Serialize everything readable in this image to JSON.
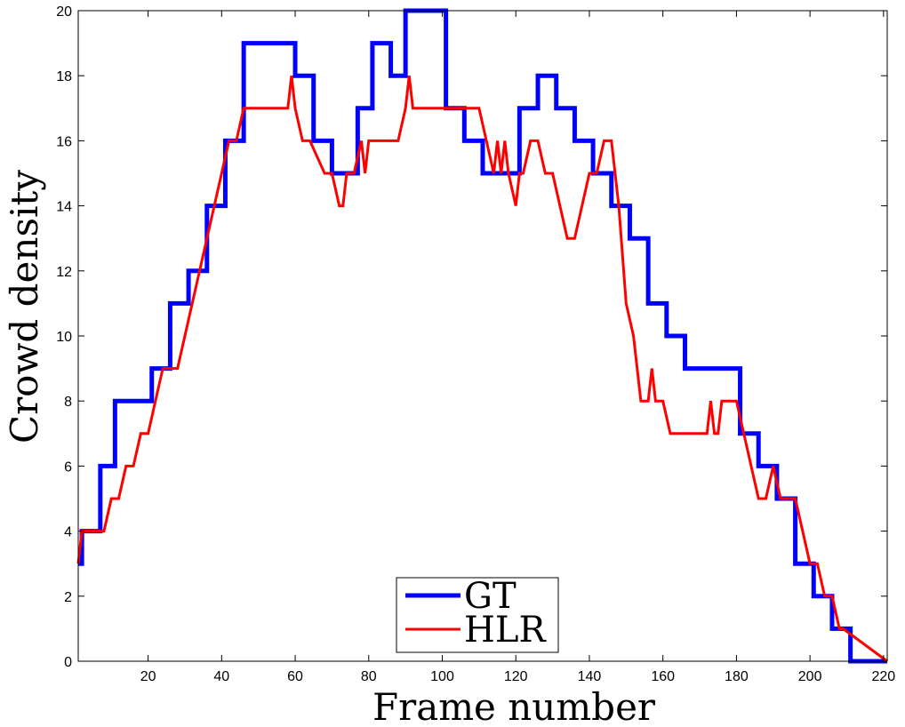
{
  "chart_data": {
    "type": "line",
    "title": "",
    "xlabel": "Frame number",
    "ylabel": "Crowd density",
    "xlim": [
      1,
      221
    ],
    "ylim": [
      0,
      20
    ],
    "xticks": [
      20,
      40,
      60,
      80,
      100,
      120,
      140,
      160,
      180,
      200,
      220
    ],
    "yticks": [
      0,
      2,
      4,
      6,
      8,
      10,
      12,
      14,
      16,
      18,
      20
    ],
    "grid": false,
    "legend": "bottom-center",
    "series": [
      {
        "name": "GT",
        "color": "#0000ff",
        "style": "step",
        "x": [
          1,
          2,
          5,
          7,
          10,
          11,
          20,
          21,
          25,
          26,
          30,
          31,
          35,
          36,
          40,
          41,
          45,
          46,
          59,
          60,
          64,
          65,
          69,
          70,
          76,
          77,
          80,
          81,
          85,
          86,
          89,
          90,
          100,
          101,
          105,
          106,
          110,
          111,
          120,
          121,
          125,
          126,
          130,
          131,
          135,
          136,
          140,
          141,
          145,
          146,
          150,
          151,
          155,
          156,
          160,
          161,
          165,
          166,
          180,
          181,
          185,
          186,
          190,
          191,
          195,
          196,
          200,
          201,
          205,
          206,
          210,
          211,
          221
        ],
        "y": [
          3,
          4,
          4,
          6,
          6,
          8,
          8,
          9,
          9,
          11,
          11,
          12,
          12,
          14,
          14,
          16,
          16,
          19,
          19,
          18,
          18,
          16,
          16,
          15,
          15,
          17,
          17,
          19,
          19,
          18,
          18,
          20,
          20,
          17,
          17,
          16,
          16,
          15,
          15,
          17,
          17,
          18,
          18,
          17,
          17,
          16,
          16,
          15,
          15,
          14,
          14,
          13,
          13,
          11,
          11,
          10,
          10,
          9,
          9,
          7,
          7,
          6,
          6,
          5,
          5,
          3,
          3,
          2,
          2,
          1,
          1,
          0,
          0
        ]
      },
      {
        "name": "HLR",
        "color": "#ff0000",
        "style": "line",
        "x": [
          1,
          2,
          8,
          10,
          12,
          14,
          16,
          18,
          20,
          22,
          24,
          28,
          30,
          32,
          34,
          36,
          38,
          40,
          42,
          44,
          46,
          58,
          59,
          60,
          62,
          64,
          68,
          70,
          72,
          73,
          74,
          76,
          78,
          79,
          80,
          81,
          82,
          88,
          90,
          91,
          92,
          94,
          110,
          112,
          114,
          115,
          116,
          117,
          118,
          120,
          121,
          122,
          124,
          126,
          128,
          130,
          132,
          134,
          136,
          138,
          140,
          142,
          144,
          146,
          148,
          150,
          152,
          154,
          156,
          157,
          158,
          160,
          162,
          172,
          173,
          174,
          175,
          176,
          180,
          182,
          184,
          186,
          188,
          190,
          192,
          194,
          196,
          200,
          202,
          204,
          206,
          208,
          209,
          221
        ],
        "y": [
          3,
          4,
          4,
          5,
          5,
          6,
          6,
          7,
          7,
          8,
          9,
          9,
          10,
          11,
          12,
          13,
          14,
          15,
          16,
          16,
          17,
          17,
          18,
          17,
          16,
          16,
          15,
          15,
          14,
          14,
          15,
          15,
          16,
          15,
          16,
          16,
          16,
          16,
          17,
          18,
          17,
          17,
          17,
          16,
          15,
          16,
          15,
          16,
          15,
          14,
          15,
          15,
          16,
          16,
          15,
          15,
          14,
          13,
          13,
          14,
          15,
          15,
          16,
          16,
          14,
          11,
          10,
          8,
          8,
          9,
          8,
          8,
          7,
          7,
          8,
          7,
          7,
          8,
          8,
          7,
          6,
          5,
          5,
          6,
          5,
          5,
          5,
          3,
          3,
          2,
          2,
          1,
          1,
          0
        ]
      }
    ]
  }
}
